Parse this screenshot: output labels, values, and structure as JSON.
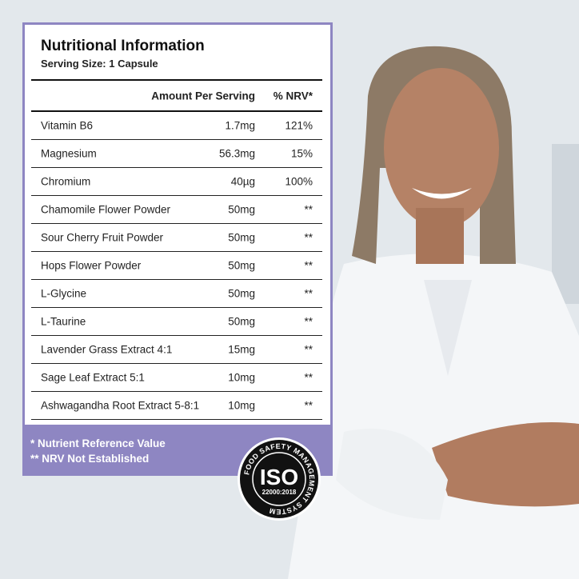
{
  "panel": {
    "title": "Nutritional Information",
    "serving_size": "Serving Size: 1 Capsule",
    "headers": {
      "amount": "Amount Per Serving",
      "nrv": "% NRV*"
    },
    "rows": [
      {
        "name": "Vitamin B6",
        "amount": "1.7mg",
        "nrv": "121%"
      },
      {
        "name": "Magnesium",
        "amount": "56.3mg",
        "nrv": "15%"
      },
      {
        "name": "Chromium",
        "amount": "40µg",
        "nrv": "100%"
      },
      {
        "name": "Chamomile Flower Powder",
        "amount": "50mg",
        "nrv": "**"
      },
      {
        "name": "Sour Cherry Fruit Powder",
        "amount": "50mg",
        "nrv": "**"
      },
      {
        "name": "Hops Flower Powder",
        "amount": "50mg",
        "nrv": "**"
      },
      {
        "name": "L-Glycine",
        "amount": "50mg",
        "nrv": "**"
      },
      {
        "name": "L-Taurine",
        "amount": "50mg",
        "nrv": "**"
      },
      {
        "name": "Lavender Grass Extract 4:1",
        "amount": "15mg",
        "nrv": "**"
      },
      {
        "name": "Sage Leaf Extract 5:1",
        "amount": "10mg",
        "nrv": "**"
      },
      {
        "name": "Ashwagandha Root Extract 5-8:1",
        "amount": "10mg",
        "nrv": "**"
      }
    ],
    "footnotes": [
      "* Nutrient Reference Value",
      "** NRV Not Established"
    ]
  },
  "seal": {
    "main": "ISO",
    "code": "22000:2018",
    "ring": "FOOD SAFETY MANAGEMENT SYSTEM"
  },
  "colors": {
    "accent": "#8e86c2"
  }
}
